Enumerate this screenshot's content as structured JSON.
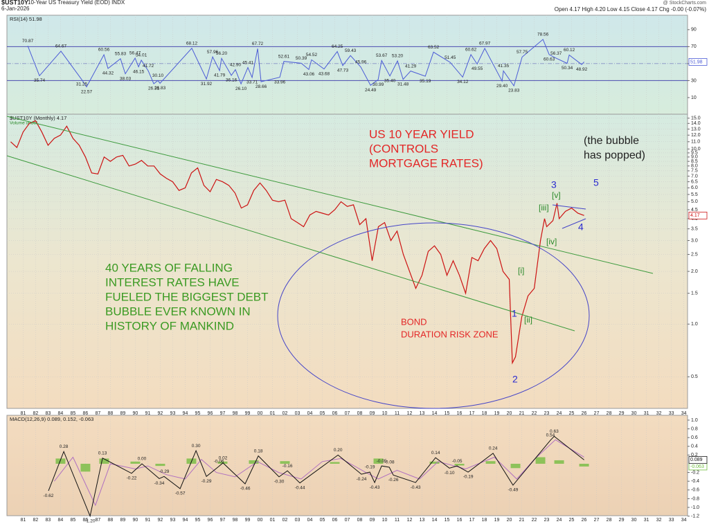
{
  "header": {
    "symbol": "$UST10Y",
    "name": "10-Year US Treasury Yield (EOD) INDX",
    "date": "6-Jan-2026",
    "source": "@ StockCharts.com",
    "quote": "Open 4.17 High 4.20 Low 4.15 Close 4.17 Chg -0.00 (-0.07%)"
  },
  "chart_data": [
    {
      "type": "line",
      "label": "RSI(14) 51.98",
      "xlim": [
        1979.7,
        2034.3
      ],
      "ylim": [
        -9.6,
        107
      ],
      "yticks": [
        10,
        30,
        50,
        70,
        90
      ],
      "bands": [
        30,
        70
      ],
      "midline": 50,
      "series": [
        {
          "color": "#4b5bd6",
          "tag": true,
          "x": [
            1981.37,
            1982.31,
            1984.03,
            1985.7,
            1986.09,
            1987.48,
            1987.81,
            1988.81,
            1989.2,
            1989.98,
            1990.26,
            1990.48,
            1991.03,
            1991.48,
            1991.81,
            1991.98,
            1994.53,
            1995.7,
            1996.2,
            1996.76,
            1996.92,
            1997.7,
            1998.03,
            1998.48,
            1999.03,
            1999.37,
            1999.81,
            2000.09,
            2001.59,
            2001.92,
            2003.31,
            2003.92,
            2004.14,
            2005.14,
            2006.2,
            2006.64,
            2007.26,
            2008.09,
            2008.87,
            2009.48,
            2009.76,
            2010.42,
            2011.03,
            2011.48,
            2012.09,
            2013.26,
            2013.92,
            2015.26,
            2016.26,
            2016.92,
            2017.42,
            2018.03,
            2019.42,
            2019.53,
            2020.37,
            2021.03,
            2022.7,
            2023.2,
            2023.76,
            2024.64,
            2024.81,
            2025.81,
            2026
          ],
          "values": [
            70.87,
            35.74,
            64.67,
            31.25,
            22.57,
            60.56,
            44.32,
            55.83,
            38.03,
            56.47,
            46.15,
            54.01,
            41.72,
            26.31,
            30.1,
            26.83,
            68.12,
            31.92,
            57.96,
            41.79,
            56.2,
            36.16,
            42.9,
            26.1,
            45.41,
            33.71,
            67.72,
            28.66,
            33.96,
            52.61,
            50.39,
            43.06,
            54.52,
            43.68,
            64.25,
            47.73,
            59.43,
            45.96,
            24.49,
            30.99,
            53.67,
            35.4,
            53.2,
            31.48,
            41.29,
            35.19,
            63.52,
            51.45,
            34.12,
            60.62,
            49.55,
            67.97,
            29.4,
            41.35,
            23.83,
            57.75,
            78.56,
            60.63,
            56.37,
            50.34,
            60.12,
            48.92,
            51.98
          ],
          "value_labels": [
            "70.87",
            "35.74",
            "64.67",
            "31.25",
            "22.57",
            "60.56",
            "44.32",
            "55.83",
            "38.03",
            "56.47",
            "46.15",
            "54.01",
            "41.72",
            "26.31",
            "30.10",
            "26.83",
            "68.12",
            "31.92",
            "57.96",
            "41.79",
            "56.20",
            "36.16",
            "42.90",
            "26.10",
            "45.41",
            "33.71",
            "67.72",
            "28.66",
            "33.96",
            "52.61",
            "50.39",
            "43.06",
            "54.52",
            "43.68",
            "64.25",
            "47.73",
            "59.43",
            "45.96",
            "24.49",
            "30.99",
            "53.67",
            "35.40",
            "53.20",
            "31.48",
            "41.29",
            "35.19",
            "63.52",
            "51.45",
            "34.12",
            "60.62",
            "49.55",
            "67.97",
            "29.40",
            "41.35",
            "23.83",
            "57.75",
            "78.56",
            "60.63",
            "56.37",
            "50.34",
            "60.12",
            "48.92",
            "51.98"
          ]
        }
      ]
    },
    {
      "type": "line",
      "log": true,
      "label": "$UST10Y (Monthly) 4.17",
      "sublabel": "Volume undef",
      "xlim": [
        1979.7,
        2034.3
      ],
      "ylim": [
        0.33,
        15.8
      ],
      "grid": true,
      "yticks": [
        0.5,
        {
          "value": 1,
          "label": "1.0"
        },
        1.5,
        {
          "value": 2,
          "label": "2.0"
        },
        2.5,
        {
          "value": 3,
          "label": "3.0"
        },
        3.5,
        {
          "value": 4,
          "label": "4.0"
        },
        4.5,
        {
          "value": 5,
          "label": "5.0"
        },
        5.5,
        {
          "value": 6,
          "label": "6.0"
        },
        6.5,
        {
          "value": 7,
          "label": "7.0"
        },
        7.5,
        {
          "value": 8,
          "label": "8.0"
        },
        8.5,
        {
          "value": 9,
          "label": "9.0"
        },
        9.5,
        {
          "value": 10,
          "label": "10.0"
        },
        {
          "value": 11,
          "label": "11.0"
        },
        {
          "value": 12,
          "label": "12.0"
        },
        {
          "value": 13,
          "label": "13.0"
        },
        {
          "value": 14,
          "label": "14.0"
        },
        {
          "value": 15,
          "label": "15.0"
        }
      ],
      "xticks": [
        {
          "value": 1981,
          "label": "81"
        },
        {
          "value": 1982,
          "label": "82"
        },
        {
          "value": 1983,
          "label": "83"
        },
        {
          "value": 1984,
          "label": "84"
        },
        {
          "value": 1985,
          "label": "85"
        },
        {
          "value": 1986,
          "label": "86"
        },
        {
          "value": 1987,
          "label": "87"
        },
        {
          "value": 1988,
          "label": "88"
        },
        {
          "value": 1989,
          "label": "89"
        },
        {
          "value": 1990,
          "label": "90"
        },
        {
          "value": 1991,
          "label": "91"
        },
        {
          "value": 1992,
          "label": "92"
        },
        {
          "value": 1993,
          "label": "93"
        },
        {
          "value": 1994,
          "label": "94"
        },
        {
          "value": 1995,
          "label": "95"
        },
        {
          "value": 1996,
          "label": "96"
        },
        {
          "value": 1997,
          "label": "97"
        },
        {
          "value": 1998,
          "label": "98"
        },
        {
          "value": 1999,
          "label": "99"
        },
        {
          "value": 2000,
          "label": "00"
        },
        {
          "value": 2001,
          "label": "01"
        },
        {
          "value": 2002,
          "label": "02"
        },
        {
          "value": 2003,
          "label": "03"
        },
        {
          "value": 2004,
          "label": "04"
        },
        {
          "value": 2005,
          "label": "05"
        },
        {
          "value": 2006,
          "label": "06"
        },
        {
          "value": 2007,
          "label": "07"
        },
        {
          "value": 2008,
          "label": "08"
        },
        {
          "value": 2009,
          "label": "09"
        },
        {
          "value": 2010,
          "label": "10"
        },
        {
          "value": 2011,
          "label": "11"
        },
        {
          "value": 2012,
          "label": "12"
        },
        {
          "value": 2013,
          "label": "13"
        },
        {
          "value": 2014,
          "label": "14"
        },
        {
          "value": 2015,
          "label": "15"
        },
        {
          "value": 2016,
          "label": "16"
        },
        {
          "value": 2017,
          "label": "17"
        },
        {
          "value": 2018,
          "label": "18"
        },
        {
          "value": 2019,
          "label": "19"
        },
        {
          "value": 2020,
          "label": "20"
        },
        {
          "value": 2021,
          "label": "21"
        },
        {
          "value": 2022,
          "label": "22"
        },
        {
          "value": 2023,
          "label": "23"
        },
        {
          "value": 2024,
          "label": "24"
        },
        {
          "value": 2025,
          "label": "25"
        },
        {
          "value": 2026,
          "label": "26"
        },
        {
          "value": 2027,
          "label": "27"
        },
        {
          "value": 2028,
          "label": "28"
        },
        {
          "value": 2029,
          "label": "29"
        },
        {
          "value": 2030,
          "label": "30"
        },
        {
          "value": 2031,
          "label": "31"
        },
        {
          "value": 2032,
          "label": "32"
        },
        {
          "value": 2033,
          "label": "33"
        },
        {
          "value": 2034,
          "label": "34"
        }
      ],
      "series": [
        {
          "color": "#cc1111",
          "tag": true,
          "x": [
            1980,
            1980.5,
            1981,
            1981.5,
            1982,
            1982.5,
            1983,
            1983.5,
            1984,
            1984.5,
            1985,
            1985.5,
            1986,
            1986.5,
            1987,
            1987.5,
            1988,
            1988.5,
            1989,
            1989.5,
            1990,
            1990.5,
            1991,
            1991.5,
            1992,
            1992.5,
            1993,
            1993.5,
            1994,
            1994.5,
            1995,
            1995.5,
            1996,
            1996.5,
            1997,
            1997.5,
            1998,
            1998.5,
            1999,
            1999.5,
            2000,
            2000.5,
            2001,
            2001.5,
            2002,
            2002.5,
            2003,
            2003.5,
            2004,
            2004.5,
            2005,
            2005.5,
            2006,
            2006.5,
            2007,
            2007.5,
            2008,
            2008.5,
            2009,
            2009.5,
            2010,
            2010.5,
            2011,
            2011.5,
            2012,
            2012.5,
            2013,
            2013.5,
            2014,
            2014.5,
            2015,
            2015.5,
            2016,
            2016.5,
            2017,
            2017.5,
            2018,
            2018.5,
            2019,
            2019.5,
            2020,
            2020.25,
            2020.5,
            2021,
            2021.5,
            2022,
            2022.5,
            2022.83,
            2023,
            2023.5,
            2023.83,
            2024,
            2024.5,
            2025,
            2025.5,
            2026
          ],
          "values": [
            11.0,
            10.2,
            12.5,
            14.0,
            14.5,
            12.5,
            10.5,
            11.5,
            12.0,
            13.5,
            11.5,
            10.5,
            9.0,
            7.3,
            7.2,
            9.0,
            8.5,
            9.0,
            9.2,
            8.0,
            8.2,
            8.6,
            8.0,
            8.0,
            7.2,
            6.8,
            6.5,
            5.8,
            6.0,
            7.3,
            7.8,
            6.2,
            5.7,
            6.7,
            6.5,
            6.2,
            5.6,
            4.6,
            4.8,
            5.8,
            6.4,
            5.8,
            5.1,
            5.0,
            5.1,
            4.0,
            3.8,
            3.6,
            4.2,
            4.4,
            4.3,
            4.2,
            4.5,
            5.0,
            4.7,
            4.8,
            3.7,
            4.0,
            2.3,
            3.6,
            3.8,
            3.0,
            3.4,
            2.5,
            2.0,
            1.6,
            1.9,
            2.6,
            2.8,
            2.5,
            1.9,
            2.3,
            1.9,
            1.5,
            2.4,
            2.3,
            2.7,
            3.0,
            2.7,
            2.0,
            1.8,
            0.6,
            0.65,
            1.1,
            1.45,
            1.6,
            3.0,
            4.0,
            3.6,
            3.9,
            4.9,
            4.0,
            4.4,
            4.6,
            4.3,
            4.17
          ]
        }
      ],
      "annotations": [
        {
          "lines": [
            "US 10 YEAR YIELD",
            "(CONTROLS",
            "MORTGAGE RATES)"
          ],
          "color": "#e32626"
        },
        {
          "lines": [
            "(the bubble",
            "has popped)"
          ],
          "color": "#222222"
        },
        {
          "lines": [
            "40 YEARS OF FALLING",
            "INTEREST RATES HAVE",
            "FUELED THE BIGGEST DEBT",
            "BUBBLE EVER KNOWN IN",
            "HISTORY OF MANKIND"
          ],
          "color": "#3a9a22"
        },
        {
          "lines": [
            "BOND",
            "DURATION RISK ZONE"
          ],
          "color": "#e32626"
        },
        {
          "lines": [
            "3"
          ],
          "color": "#2a2ad0"
        },
        {
          "lines": [
            "5"
          ],
          "color": "#2a2ad0"
        },
        {
          "lines": [
            "4"
          ],
          "color": "#2a2ad0"
        },
        {
          "lines": [
            "1"
          ],
          "color": "#2a2ad0"
        },
        {
          "lines": [
            "2"
          ],
          "color": "#2a2ad0"
        },
        {
          "lines": [
            "[v]"
          ],
          "color": "#2b8a2b"
        },
        {
          "lines": [
            "[iii]"
          ],
          "color": "#2b8a2b"
        },
        {
          "lines": [
            "[iv]"
          ],
          "color": "#2b8a2b"
        },
        {
          "lines": [
            "[i]"
          ],
          "color": "#2b8a2b"
        },
        {
          "lines": [
            "[ii]"
          ],
          "color": "#2b8a2b"
        }
      ]
    },
    {
      "type": "line",
      "label": "MACD(12,26,9) 0.089, 0.152, -0.063",
      "xlim": [
        1979.7,
        2034.3
      ],
      "ylim": [
        -1.19,
        1.11
      ],
      "yticks": [
        {
          "value": 1,
          "label": "1.0"
        },
        0.8,
        0.6,
        0.4,
        0.2,
        -0.2,
        -0.4,
        -0.6,
        -0.8,
        {
          "value": -1,
          "label": "-1.0"
        },
        -1.2
      ],
      "series": [
        {
          "type": "bar",
          "color": "#6dbb3a",
          "tag": true,
          "x": [
            1984,
            1986,
            1987.5,
            1990,
            1992,
            1994.5,
            1997,
            1999.5,
            2002,
            2006,
            2009.5,
            2014,
            2016,
            2018.5,
            2020.5,
            2022.5,
            2024,
            2026
          ],
          "values": [
            0.12,
            -0.18,
            0.12,
            0.05,
            -0.05,
            0.12,
            0.05,
            0.08,
            0.06,
            0.04,
            0.12,
            0.05,
            -0.04,
            0.06,
            -0.1,
            0.15,
            0.08,
            -0.063
          ]
        },
        {
          "color": "#b070c0",
          "x": [
            1983.5,
            1985,
            1986.8,
            1988,
            1990,
            1991,
            1992.5,
            1994,
            1995.3,
            1996.5,
            1998,
            1999.8,
            2001.5,
            2003.3,
            2005,
            2006.5,
            2008.5,
            2009.5,
            2011,
            2012.8,
            2014.3,
            2016.5,
            2018.8,
            2020.6,
            2022,
            2023.7,
            2026
          ],
          "values": [
            -0.4,
            0.15,
            -0.95,
            0.0,
            -0.12,
            -0.05,
            -0.25,
            -0.35,
            0.1,
            -0.2,
            -0.3,
            0.05,
            -0.2,
            -0.35,
            0.05,
            0.12,
            -0.2,
            -0.35,
            -0.15,
            -0.35,
            0.05,
            -0.12,
            0.15,
            -0.35,
            0.1,
            0.55,
            0.152
          ]
        },
        {
          "color": "#111111",
          "tag": true,
          "x": [
            1983.03,
            1984.26,
            1986.37,
            1987.37,
            1989.7,
            1990.53,
            1991.92,
            1992.31,
            1993.59,
            1994.87,
            1995.7,
            1996.7,
            1997.03,
            1998.81,
            1999.87,
            2001.53,
            2002.2,
            2003.2,
            2006.26,
            2008.14,
            2008.81,
            2009.2,
            2009.76,
            2010.37,
            2010.7,
            2012.48,
            2014.09,
            2015.2,
            2015.81,
            2016.7,
            2018.7,
            2020.3,
            2023.3,
            2023.6,
            2026
          ],
          "values": [
            -0.62,
            0.28,
            -1.2,
            0.13,
            -0.22,
            0,
            -0.34,
            -0.29,
            -0.57,
            0.3,
            -0.29,
            -0.06,
            0.02,
            -0.46,
            0.18,
            -0.3,
            -0.16,
            -0.44,
            0.2,
            -0.24,
            -0.19,
            -0.43,
            -0.05,
            -0.08,
            -0.26,
            -0.43,
            0.14,
            -0.1,
            -0.05,
            -0.19,
            0.24,
            -0.49,
            0.54,
            0.63,
            0.089
          ],
          "value_labels": [
            "-0.62",
            "0.28",
            "-1.20",
            "0.13",
            "-0.22",
            "0.00",
            "-0.34",
            "-0.29",
            "-0.57",
            "0.30",
            "-0.29",
            "-0.06",
            "0.02",
            "-0.46",
            "0.18",
            "-0.30",
            "-0.16",
            "-0.44",
            "0.20",
            "-0.24",
            "-0.19",
            "-0.43",
            "-0.05",
            "-0.08",
            "-0.26",
            "-0.43",
            "0.14",
            "-0.10",
            "-0.05",
            "-0.19",
            "0.24",
            "-0.49",
            "0.54",
            "0.63",
            "0.089"
          ]
        }
      ]
    }
  ]
}
